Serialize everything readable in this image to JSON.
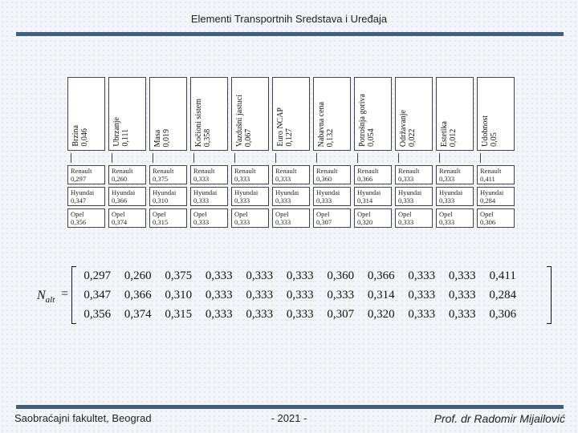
{
  "title": "Elementi Transportnih Sredstava i Uređaja",
  "criteria": [
    {
      "name": "Brzina",
      "weight": "0,046"
    },
    {
      "name": "Ubrzanje",
      "weight": "0,111"
    },
    {
      "name": "Masa",
      "weight": "0,019"
    },
    {
      "name": "Kočioni sistem",
      "weight": "0,358"
    },
    {
      "name": "Vazdušni jastuci",
      "weight": "0,067"
    },
    {
      "name": "Euro NCAP",
      "weight": "0,127"
    },
    {
      "name": "Nabavna cena",
      "weight": "0,132"
    },
    {
      "name": "Potrošnja goriva",
      "weight": "0,054"
    },
    {
      "name": "Održavanje",
      "weight": "0,022"
    },
    {
      "name": "Estetika",
      "weight": "0,012"
    },
    {
      "name": "Udobnost",
      "weight": "0,05"
    }
  ],
  "alternatives": [
    "Renault",
    "Hyundai",
    "Opel"
  ],
  "table_values": [
    [
      "0,297",
      "0,260",
      "0,375",
      "0,333",
      "0,333",
      "0,333",
      "0,360",
      "0,366",
      "0,333",
      "0,333",
      "0,411"
    ],
    [
      "0,347",
      "0,366",
      "0,310",
      "0,333",
      "0,333",
      "0,333",
      "0,333",
      "0,314",
      "0,333",
      "0,333",
      "0,284"
    ],
    [
      "0,356",
      "0,374",
      "0,315",
      "0,333",
      "0,333",
      "0,333",
      "0,307",
      "0,320",
      "0,333",
      "0,333",
      "0,306"
    ]
  ],
  "matrix": {
    "label": "N",
    "label_sub": "alt",
    "equals": "=",
    "rows": [
      [
        "0,297",
        "0,260",
        "0,375",
        "0,333",
        "0,333",
        "0,333",
        "0,360",
        "0,366",
        "0,333",
        "0,333",
        "0,411"
      ],
      [
        "0,347",
        "0,366",
        "0,310",
        "0,333",
        "0,333",
        "0,333",
        "0,333",
        "0,314",
        "0,333",
        "0,333",
        "0,284"
      ],
      [
        "0,356",
        "0,374",
        "0,315",
        "0,333",
        "0,333",
        "0,333",
        "0,307",
        "0,320",
        "0,333",
        "0,333",
        "0,306"
      ]
    ]
  },
  "footer": {
    "left": "Saobraćajni fakultet, Beograd",
    "center": "- 2021 -",
    "right": "Prof. dr Radomir Mijailović"
  },
  "colors": {
    "rule": "#3f5f7e",
    "background": "#f3f5f9"
  }
}
